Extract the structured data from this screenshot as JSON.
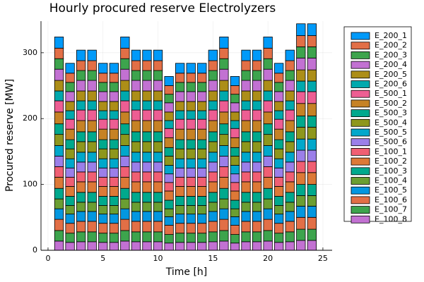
{
  "chart_data": {
    "type": "stacked_bar",
    "title": "Hourly procured reserve Electrolyzers",
    "x_label": "Time [h]",
    "y_label": "Procured reserve [MW]",
    "x": [
      1,
      2,
      3,
      4,
      5,
      6,
      7,
      8,
      9,
      10,
      11,
      12,
      13,
      14,
      15,
      16,
      17,
      18,
      19,
      20,
      21,
      22,
      23,
      24
    ],
    "xlim": [
      -0.64,
      25.84
    ],
    "xticks": [
      0,
      5,
      10,
      15,
      20,
      25
    ],
    "ylim": [
      0,
      348
    ],
    "yticks": [
      0,
      100,
      200,
      300
    ],
    "grid": true,
    "legend": "outer-right",
    "series": [
      {
        "name": "E_200_1",
        "color": "#009af9",
        "values": [
          17,
          15,
          16,
          16,
          15,
          15,
          17,
          16,
          16,
          16,
          14,
          15,
          15,
          15,
          16,
          17,
          14,
          16,
          16,
          17,
          15,
          16,
          18,
          18
        ]
      },
      {
        "name": "E_200_2",
        "color": "#e26f46",
        "values": [
          16,
          14,
          15,
          15,
          14,
          14,
          16,
          15,
          15,
          15,
          13,
          14,
          14,
          14,
          15,
          16,
          13,
          15,
          15,
          16,
          14,
          15,
          17,
          17
        ]
      },
      {
        "name": "E_200_3",
        "color": "#3da44d",
        "values": [
          16,
          14,
          15,
          15,
          14,
          14,
          16,
          15,
          15,
          15,
          13,
          14,
          14,
          14,
          15,
          16,
          13,
          15,
          15,
          16,
          14,
          15,
          17,
          17
        ]
      },
      {
        "name": "E_200_4",
        "color": "#c271d2",
        "values": [
          17,
          15,
          16,
          16,
          15,
          15,
          17,
          16,
          16,
          16,
          14,
          15,
          15,
          15,
          16,
          17,
          14,
          16,
          16,
          17,
          15,
          16,
          18,
          18
        ]
      },
      {
        "name": "E_200_5",
        "color": "#ac8e18",
        "values": [
          16,
          14,
          15,
          15,
          14,
          14,
          16,
          15,
          15,
          15,
          13,
          14,
          14,
          14,
          15,
          16,
          13,
          15,
          15,
          16,
          14,
          15,
          17,
          17
        ]
      },
      {
        "name": "E_200_6",
        "color": "#00a9ad",
        "values": [
          15,
          13,
          14,
          14,
          13,
          13,
          15,
          14,
          14,
          14,
          12,
          13,
          13,
          13,
          14,
          15,
          12,
          14,
          14,
          15,
          13,
          14,
          16,
          16
        ]
      },
      {
        "name": "E_500_1",
        "color": "#ed5e93",
        "values": [
          17,
          15,
          16,
          16,
          15,
          15,
          17,
          16,
          16,
          16,
          14,
          15,
          15,
          15,
          16,
          17,
          14,
          16,
          16,
          17,
          15,
          16,
          18,
          18
        ]
      },
      {
        "name": "E_500_2",
        "color": "#c68225",
        "values": [
          18,
          16,
          17,
          17,
          16,
          16,
          18,
          17,
          17,
          17,
          15,
          16,
          16,
          16,
          17,
          18,
          15,
          17,
          17,
          18,
          16,
          17,
          19,
          19
        ]
      },
      {
        "name": "E_500_3",
        "color": "#00a98d",
        "values": [
          16,
          14,
          15,
          15,
          14,
          14,
          16,
          15,
          15,
          15,
          13,
          14,
          14,
          14,
          15,
          16,
          13,
          15,
          15,
          16,
          14,
          15,
          17,
          17
        ]
      },
      {
        "name": "E_500_4",
        "color": "#8e971d",
        "values": [
          17,
          15,
          16,
          16,
          15,
          15,
          17,
          16,
          16,
          16,
          14,
          15,
          15,
          15,
          16,
          17,
          14,
          16,
          16,
          17,
          15,
          16,
          18,
          18
        ]
      },
      {
        "name": "E_500_5",
        "color": "#00a8cb",
        "values": [
          16,
          14,
          15,
          15,
          14,
          14,
          16,
          15,
          15,
          15,
          13,
          14,
          14,
          14,
          15,
          16,
          13,
          15,
          15,
          16,
          14,
          15,
          17,
          17
        ]
      },
      {
        "name": "E_500_6",
        "color": "#9b7fe9",
        "values": [
          16,
          14,
          15,
          15,
          14,
          14,
          16,
          15,
          15,
          15,
          13,
          14,
          14,
          14,
          15,
          16,
          13,
          15,
          15,
          16,
          14,
          15,
          17,
          17
        ]
      },
      {
        "name": "E_100_1",
        "color": "#f05f73",
        "values": [
          16,
          14,
          15,
          15,
          14,
          14,
          16,
          15,
          15,
          15,
          13,
          14,
          14,
          14,
          15,
          16,
          13,
          15,
          15,
          16,
          14,
          15,
          17,
          17
        ]
      },
      {
        "name": "E_100_2",
        "color": "#dd7937",
        "values": [
          17,
          15,
          16,
          16,
          15,
          15,
          17,
          16,
          16,
          16,
          14,
          15,
          15,
          15,
          16,
          17,
          14,
          16,
          16,
          17,
          15,
          16,
          18,
          18
        ]
      },
      {
        "name": "E_100_3",
        "color": "#00a98d",
        "values": [
          16,
          14,
          15,
          15,
          14,
          14,
          16,
          15,
          15,
          15,
          13,
          14,
          14,
          14,
          15,
          16,
          13,
          15,
          15,
          16,
          14,
          15,
          17,
          17
        ]
      },
      {
        "name": "E_100_4",
        "color": "#6b9e32",
        "values": [
          15,
          13,
          14,
          14,
          13,
          13,
          15,
          14,
          14,
          14,
          12,
          13,
          13,
          13,
          14,
          15,
          12,
          14,
          14,
          15,
          13,
          14,
          16,
          16
        ]
      },
      {
        "name": "E_100_5",
        "color": "#0397e0",
        "values": [
          16,
          14,
          15,
          15,
          14,
          14,
          16,
          15,
          15,
          15,
          13,
          14,
          14,
          14,
          15,
          16,
          13,
          15,
          15,
          16,
          14,
          15,
          17,
          17
        ]
      },
      {
        "name": "E_100_6",
        "color": "#e26f46",
        "values": [
          17,
          15,
          16,
          16,
          15,
          15,
          17,
          16,
          16,
          16,
          14,
          15,
          15,
          15,
          16,
          17,
          14,
          16,
          16,
          17,
          15,
          16,
          18,
          18
        ]
      },
      {
        "name": "E_100_7",
        "color": "#3da44d",
        "values": [
          16,
          14,
          15,
          15,
          14,
          14,
          16,
          15,
          15,
          15,
          13,
          14,
          14,
          14,
          15,
          16,
          13,
          15,
          15,
          16,
          14,
          15,
          17,
          17
        ]
      },
      {
        "name": "E_100_8",
        "color": "#c271d2",
        "values": [
          14,
          12,
          13,
          13,
          12,
          12,
          14,
          13,
          13,
          13,
          11,
          12,
          12,
          12,
          13,
          14,
          11,
          13,
          13,
          14,
          12,
          13,
          15,
          15
        ]
      }
    ]
  }
}
